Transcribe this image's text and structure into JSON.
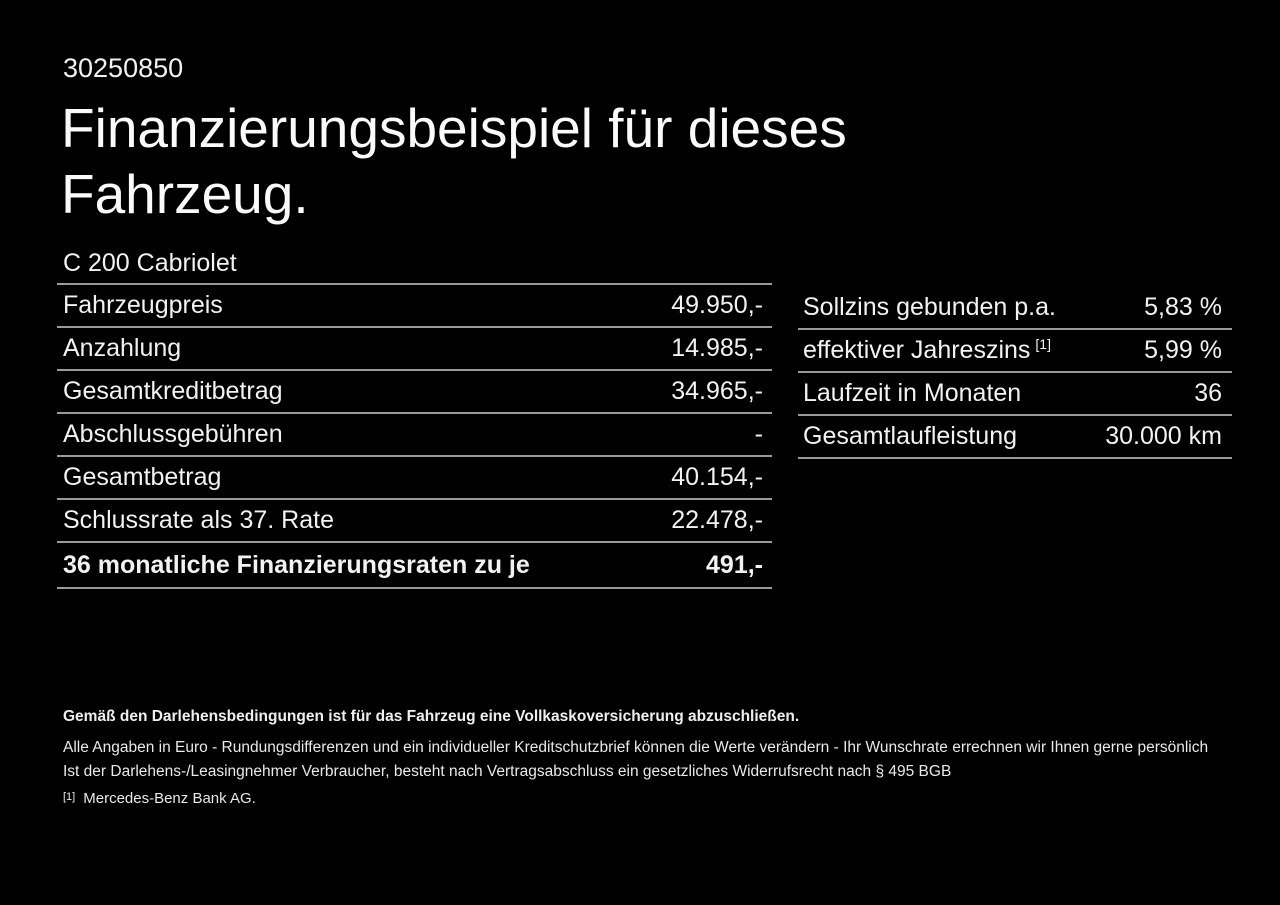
{
  "colors": {
    "background": "#000000",
    "text": "#f2f2f2",
    "divider": "#999999"
  },
  "header": {
    "listing_id": "30250850",
    "title_line1": "Finanzierungsbeispiel für dieses",
    "title_line2": "Fahrzeug."
  },
  "vehicle": {
    "model": "C 200 Cabriolet"
  },
  "finance_table": {
    "rows": [
      {
        "label": "Fahrzeugpreis",
        "value": "49.950,-"
      },
      {
        "label": "Anzahlung",
        "value": "14.985,-"
      },
      {
        "label": "Gesamtkreditbetrag",
        "value": "34.965,-"
      },
      {
        "label": "Abschlussgebühren",
        "value": "-"
      },
      {
        "label": "Gesamtbetrag",
        "value": "40.154,-"
      },
      {
        "label": "Schlussrate als 37. Rate",
        "value": "22.478,-"
      },
      {
        "label": "36 monatliche Finanzierungsraten zu je",
        "value": "491,-"
      }
    ]
  },
  "conditions_table": {
    "rows": [
      {
        "label": "Sollzins gebunden p.a.",
        "value": "5,83 %"
      },
      {
        "label": "effektiver Jahreszins",
        "sup": "[1]",
        "value": "5,99 %"
      },
      {
        "label": "Laufzeit in Monaten",
        "value": "36"
      },
      {
        "label": "Gesamtlaufleistung",
        "value": "30.000 km"
      }
    ]
  },
  "footer": {
    "insurance_note": "Gemäß den Darlehensbedingungen ist für das Fahrzeug eine Vollkaskoversicherung abzuschließen.",
    "disclaimer_line1": "Alle Angaben in Euro - Rundungsdifferenzen und ein individueller Kreditschutzbrief können die Werte verändern - Ihr Wunschrate errechnen wir Ihnen gerne persönlich",
    "disclaimer_line2": "Ist der Darlehens-/Leasingnehmer Verbraucher, besteht nach Vertragsabschluss ein gesetzliches Widerrufsrecht nach § 495 BGB",
    "footnote_marker": "[1]",
    "footnote_text": "Mercedes-Benz Bank AG."
  }
}
